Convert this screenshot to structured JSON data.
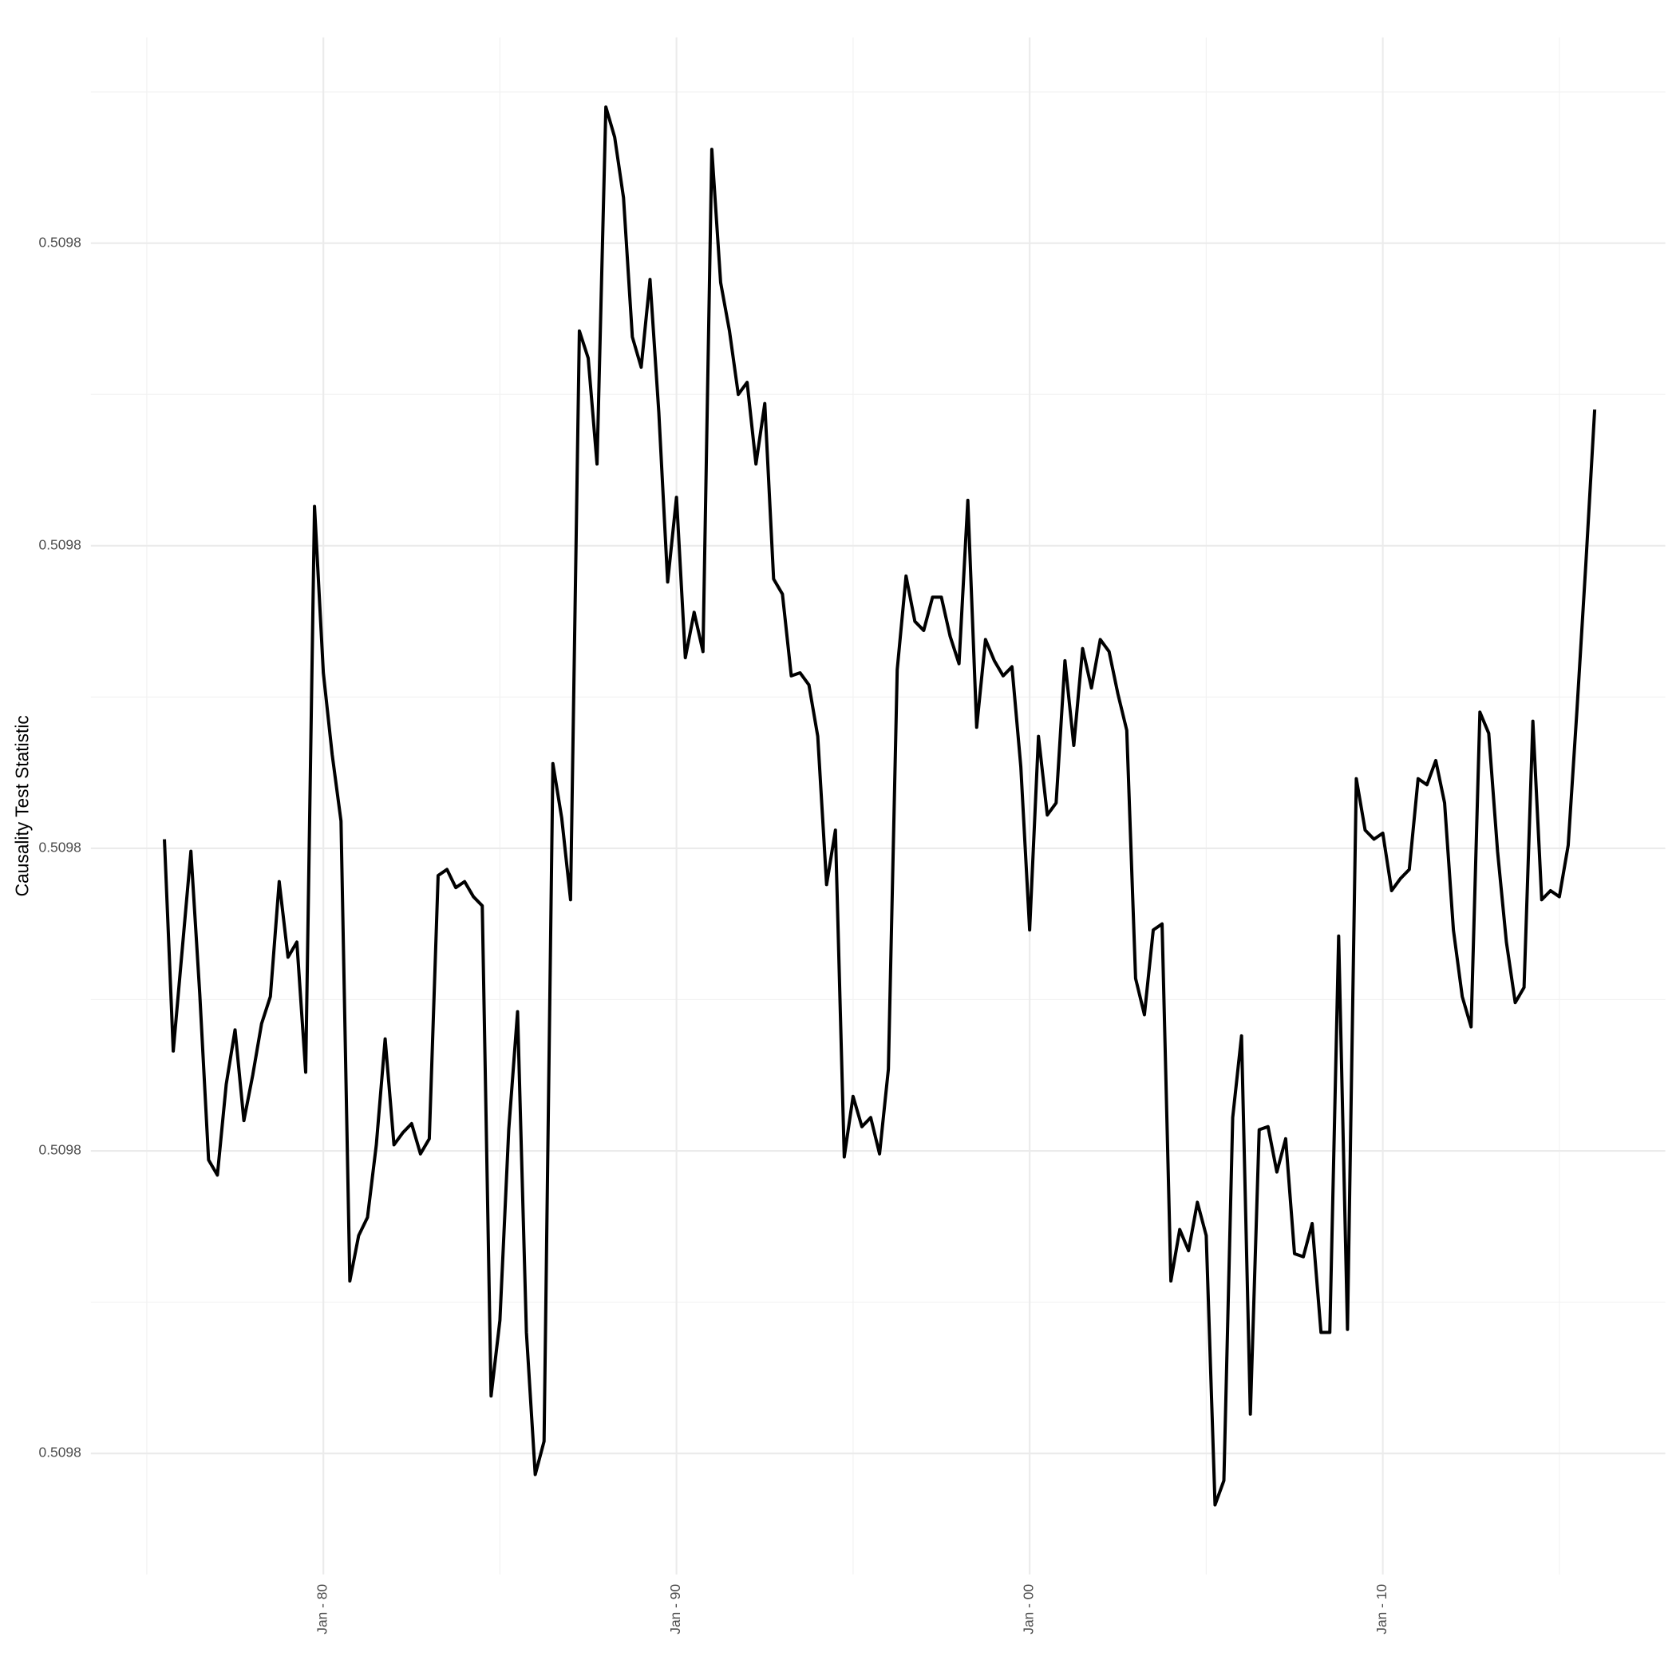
{
  "chart_data": {
    "type": "line",
    "y_label": "Causality Test Statistic",
    "color": "#000000",
    "grid": true,
    "x": [
      "1975-07",
      "1975-10",
      "1976-01",
      "1976-04",
      "1976-07",
      "1976-10",
      "1977-01",
      "1977-04",
      "1977-07",
      "1977-10",
      "1978-01",
      "1978-04",
      "1978-07",
      "1978-10",
      "1979-01",
      "1979-04",
      "1979-07",
      "1979-10",
      "1980-01",
      "1980-04",
      "1980-07",
      "1980-10",
      "1981-01",
      "1981-04",
      "1981-07",
      "1981-10",
      "1982-01",
      "1982-04",
      "1982-07",
      "1982-10",
      "1983-01",
      "1983-04",
      "1983-07",
      "1983-10",
      "1984-01",
      "1984-04",
      "1984-07",
      "1984-10",
      "1985-01",
      "1985-04",
      "1985-07",
      "1985-10",
      "1986-01",
      "1986-04",
      "1986-07",
      "1986-10",
      "1987-01",
      "1987-04",
      "1987-07",
      "1987-10",
      "1988-01",
      "1988-04",
      "1988-07",
      "1988-10",
      "1989-01",
      "1989-04",
      "1989-07",
      "1989-10",
      "1990-01",
      "1990-04",
      "1990-07",
      "1990-10",
      "1991-01",
      "1991-04",
      "1991-07",
      "1991-10",
      "1992-01",
      "1992-04",
      "1992-07",
      "1992-10",
      "1993-01",
      "1993-04",
      "1993-07",
      "1993-10",
      "1994-01",
      "1994-04",
      "1994-07",
      "1994-10",
      "1995-01",
      "1995-04",
      "1995-07",
      "1995-10",
      "1996-01",
      "1996-04",
      "1996-07",
      "1996-10",
      "1997-01",
      "1997-04",
      "1997-07",
      "1997-10",
      "1998-01",
      "1998-04",
      "1998-07",
      "1998-10",
      "1999-01",
      "1999-04",
      "1999-07",
      "1999-10",
      "2000-01",
      "2000-04",
      "2000-07",
      "2000-10",
      "2001-01",
      "2001-04",
      "2001-07",
      "2001-10",
      "2002-01",
      "2002-04",
      "2002-07",
      "2002-10",
      "2003-01",
      "2003-04",
      "2003-07",
      "2003-10",
      "2004-01",
      "2004-04",
      "2004-07",
      "2004-10",
      "2005-01",
      "2005-04",
      "2005-07",
      "2005-10",
      "2006-01",
      "2006-04",
      "2006-07",
      "2006-10",
      "2007-01",
      "2007-04",
      "2007-07",
      "2007-10",
      "2008-01",
      "2008-04",
      "2008-07",
      "2008-10",
      "2009-01",
      "2009-04",
      "2009-07",
      "2009-10",
      "2010-01",
      "2010-04",
      "2010-07",
      "2010-10",
      "2011-01",
      "2011-04",
      "2011-07",
      "2011-10",
      "2012-01",
      "2012-04",
      "2012-07",
      "2012-10",
      "2013-01",
      "2013-04",
      "2013-07",
      "2013-10",
      "2014-01",
      "2014-04",
      "2014-07",
      "2014-10",
      "2015-01",
      "2015-04",
      "2015-07",
      "2015-10",
      "2016-01"
    ],
    "values": [
      0.5098003,
      0.5097933,
      0.5097966,
      0.5097999,
      0.5097952,
      0.5097897,
      0.5097892,
      0.5097922,
      0.509794,
      0.509791,
      0.5097925,
      0.5097942,
      0.5097951,
      0.5097989,
      0.5097964,
      0.5097969,
      0.5097926,
      0.5098113,
      0.5098058,
      0.5098031,
      0.5098009,
      0.5097857,
      0.5097872,
      0.5097878,
      0.5097902,
      0.5097937,
      0.5097902,
      0.5097906,
      0.5097909,
      0.5097899,
      0.5097904,
      0.5097991,
      0.5097993,
      0.5097987,
      0.5097989,
      0.5097984,
      0.5097981,
      0.5097819,
      0.5097844,
      0.5097907,
      0.5097946,
      0.509784,
      0.5097793,
      0.5097804,
      0.5098028,
      0.509801,
      0.5097983,
      0.5098171,
      0.5098162,
      0.5098127,
      0.5098245,
      0.5098235,
      0.5098215,
      0.5098169,
      0.5098159,
      0.5098188,
      0.5098144,
      0.5098088,
      0.5098116,
      0.5098063,
      0.5098078,
      0.5098065,
      0.5098231,
      0.5098187,
      0.5098171,
      0.509815,
      0.5098154,
      0.5098127,
      0.5098147,
      0.5098089,
      0.5098084,
      0.5098057,
      0.5098058,
      0.5098054,
      0.5098037,
      0.5097988,
      0.5098006,
      0.5097898,
      0.5097918,
      0.5097908,
      0.5097911,
      0.5097899,
      0.5097927,
      0.5098059,
      0.509809,
      0.5098075,
      0.5098072,
      0.5098083,
      0.5098083,
      0.509807,
      0.5098061,
      0.5098115,
      0.509804,
      0.5098069,
      0.5098062,
      0.5098057,
      0.509806,
      0.5098027,
      0.5097973,
      0.5098037,
      0.5098011,
      0.5098015,
      0.5098062,
      0.5098034,
      0.5098066,
      0.5098053,
      0.5098069,
      0.5098065,
      0.5098051,
      0.5098039,
      0.5097957,
      0.5097945,
      0.5097973,
      0.5097975,
      0.5097857,
      0.5097874,
      0.5097867,
      0.5097883,
      0.5097872,
      0.5097783,
      0.5097791,
      0.5097911,
      0.5097938,
      0.5097813,
      0.5097907,
      0.5097908,
      0.5097893,
      0.5097904,
      0.5097866,
      0.5097865,
      0.5097876,
      0.509784,
      0.509784,
      0.5097971,
      0.5097841,
      0.5098023,
      0.5098006,
      0.5098003,
      0.5098005,
      0.5097986,
      0.509799,
      0.5097993,
      0.5098023,
      0.5098021,
      0.5098029,
      0.5098015,
      0.5097973,
      0.5097951,
      0.5097941,
      0.5098045,
      0.5098038,
      0.5097999,
      0.5097969,
      0.5097949,
      0.5097954,
      0.5098042,
      0.5097983,
      0.5097986,
      0.5097984,
      0.5098001,
      0.5098046,
      0.5098094,
      0.5098145
    ],
    "xlim": [
      "1973-06",
      "2018-01"
    ],
    "xticks": [
      {
        "value": "1980-01",
        "label": "Jan - 80"
      },
      {
        "value": "1990-01",
        "label": "Jan - 90"
      },
      {
        "value": "2000-01",
        "label": "Jan - 00"
      },
      {
        "value": "2010-01",
        "label": "Jan - 10"
      }
    ],
    "ylim": [
      0.509776,
      0.5098268
    ],
    "yticks": [
      {
        "value": 0.50978,
        "label": "0.5098"
      },
      {
        "value": 0.50979,
        "label": "0.5098"
      },
      {
        "value": 0.5098,
        "label": "0.5098"
      },
      {
        "value": 0.50981,
        "label": "0.5098"
      },
      {
        "value": 0.50982,
        "label": "0.5098"
      }
    ]
  }
}
